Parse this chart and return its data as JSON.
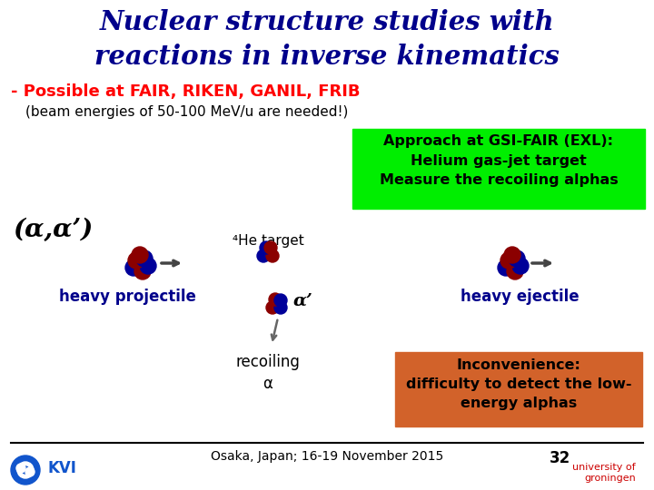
{
  "title_line1": "Nuclear structure studies with",
  "title_line2": "reactions in inverse kinematics",
  "subtitle": "- Possible at FAIR, RIKEN, GANIL, FRIB",
  "beam_text": "(beam energies of 50-100 MeV/u are needed!)",
  "green_box_text": "Approach at GSI-FAIR (EXL):\nHelium gas-jet target\nMeasure the recoiling alphas",
  "alpha_label": "(α,α’)",
  "he_target_label": "⁴He target",
  "alpha_prime_label": "α’",
  "heavy_projectile_label": "heavy projectile",
  "heavy_ejectile_label": "heavy ejectile",
  "recoiling_label": "recoiling\nα",
  "orange_box_text": "Inconvenience:\ndifficulty to detect the low-\nenergy alphas",
  "footer_text": "Osaka, Japan; 16-19 November 2015",
  "page_number": "32",
  "title_color": "#00008B",
  "subtitle_color": "#FF0000",
  "beam_text_color": "#000000",
  "green_box_color": "#00EE00",
  "green_box_text_color": "#000000",
  "alpha_label_color": "#000000",
  "blue_label_color": "#00008B",
  "orange_box_color": "#D2622A",
  "orange_box_text_color": "#000000",
  "bg_color": "#FFFFFF",
  "footer_color": "#000000",
  "nucleus_red": "#8B0000",
  "nucleus_blue": "#000099"
}
